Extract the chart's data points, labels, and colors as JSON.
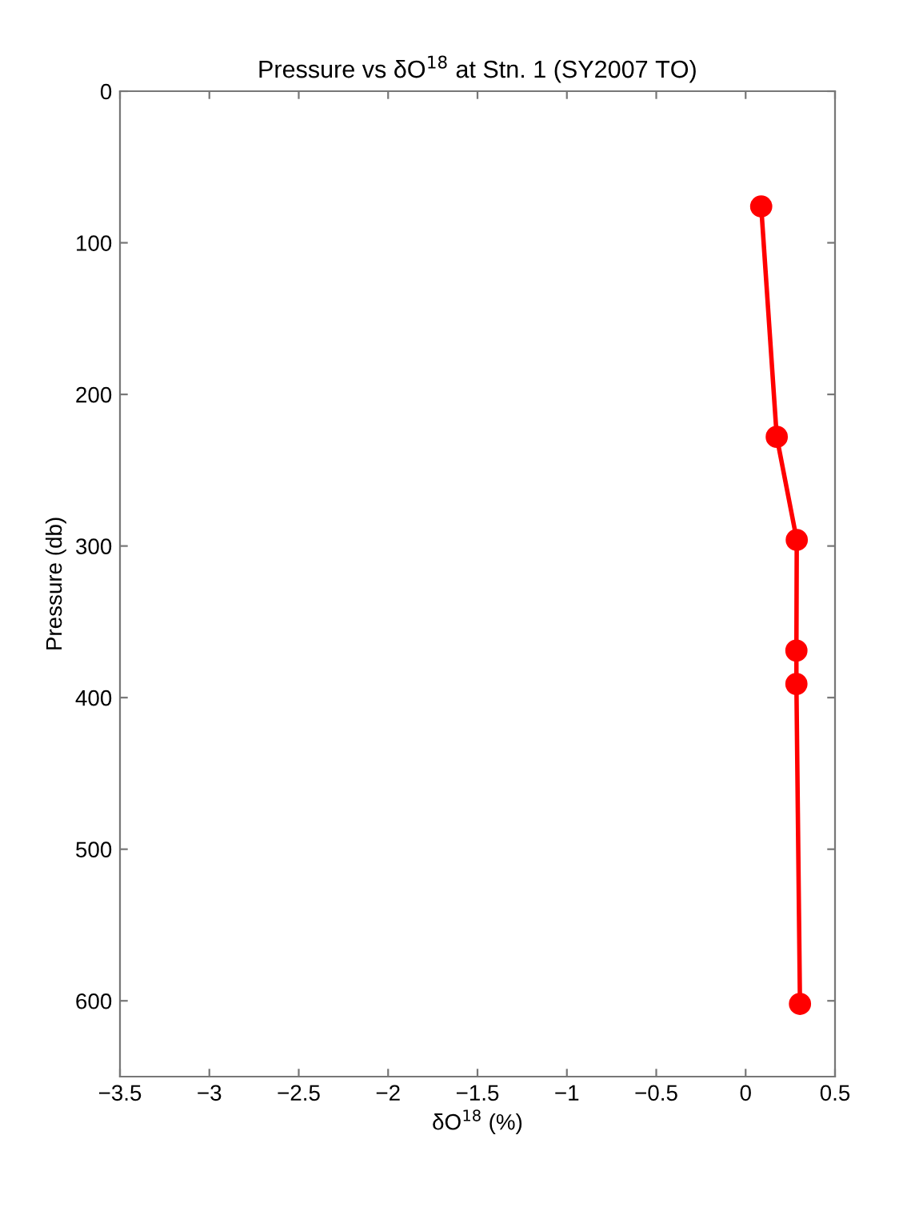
{
  "chart_data": {
    "type": "line",
    "title": "Pressure vs δO$^{18}$ at Stn. 1 (SY2007 TO)",
    "xlabel": "δO$^{18}$ (%)",
    "ylabel": "Pressure (db)",
    "x": [
      0.087,
      0.174,
      0.286,
      0.284,
      0.284,
      0.304
    ],
    "series": [
      {
        "color": "#ff0000",
        "values": [
          76,
          228,
          296,
          369,
          391,
          602
        ]
      }
    ],
    "xlim": [
      -3.5,
      0.5
    ],
    "ylim": [
      650,
      0
    ],
    "xticks": [
      {
        "value": -3.5,
        "label": "−3.5"
      },
      {
        "value": -3,
        "label": "−3"
      },
      {
        "value": -2.5,
        "label": "−2.5"
      },
      {
        "value": -2,
        "label": "−2"
      },
      {
        "value": -1.5,
        "label": "−1.5"
      },
      {
        "value": -1,
        "label": "−1"
      },
      {
        "value": -0.5,
        "label": "−0.5"
      },
      0,
      0.5
    ],
    "yticks": [
      0,
      100,
      200,
      300,
      400,
      500,
      600
    ],
    "grid": false,
    "legend": false,
    "marker": "circle",
    "line_style": "solid"
  }
}
